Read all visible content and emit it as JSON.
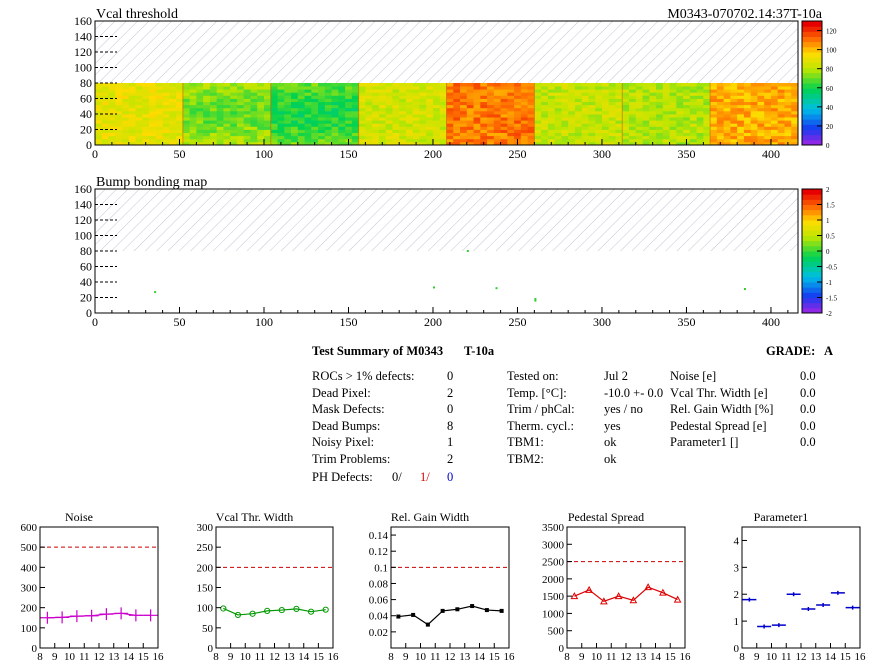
{
  "header": {
    "left_title": "Vcal threshold",
    "right_title": "M0343-070702.14:37T-10a"
  },
  "maps": [
    {
      "title": "Vcal threshold",
      "x_ticks": [
        0,
        50,
        100,
        150,
        200,
        250,
        300,
        350,
        400
      ],
      "y_ticks": [
        0,
        20,
        40,
        60,
        80,
        100,
        120,
        140,
        160
      ],
      "xlim": [
        0,
        416
      ],
      "ylim": [
        0,
        160
      ],
      "palette_ticks": [
        "0",
        "20",
        "40",
        "60",
        "80",
        "100",
        "120"
      ],
      "palette_range": [
        0,
        130
      ]
    },
    {
      "title": "Bump bonding map",
      "x_ticks": [
        0,
        50,
        100,
        150,
        200,
        250,
        300,
        350,
        400
      ],
      "y_ticks": [
        0,
        20,
        40,
        60,
        80,
        100,
        120,
        140,
        160
      ],
      "xlim": [
        0,
        416
      ],
      "ylim": [
        0,
        160
      ],
      "palette_ticks": [
        "-2",
        "-1.5",
        "-1",
        "-0.5",
        "0",
        "0.5",
        "1",
        "1.5",
        "2"
      ],
      "palette_range": [
        -2,
        2
      ]
    }
  ],
  "summary": {
    "title": "Test Summary of M0343",
    "temp_tag": "T-10a",
    "grade_label": "GRADE:",
    "grade": "A",
    "left": [
      {
        "label": "ROCs > 1% defects:",
        "value": "0"
      },
      {
        "label": "Dead Pixel:",
        "value": "2"
      },
      {
        "label": "Mask Defects:",
        "value": "0"
      },
      {
        "label": "Dead Bumps:",
        "value": "8"
      },
      {
        "label": "Noisy Pixel:",
        "value": "1"
      },
      {
        "label": "Trim Problems:",
        "value": "2"
      }
    ],
    "ph_label": "PH Defects:",
    "ph_values": [
      "0/",
      "1/",
      "0"
    ],
    "ph_colors": [
      "#000000",
      "#dd0000",
      "#0000cc"
    ],
    "middle": [
      {
        "label": "Tested on:",
        "value": "Jul 2"
      },
      {
        "label": "Temp. [°C]:",
        "value": "-10.0 +- 0.0"
      },
      {
        "label": "Trim / phCal:",
        "value": "yes / no"
      },
      {
        "label": "Therm. cycl.:",
        "value": "yes"
      },
      {
        "label": "TBM1:",
        "value": "ok"
      },
      {
        "label": "TBM2:",
        "value": "ok"
      }
    ],
    "right": [
      {
        "label": "Noise [e]",
        "value": "0.0"
      },
      {
        "label": "Vcal Thr. Width [e]",
        "value": "0.0"
      },
      {
        "label": "Rel. Gain Width [%]",
        "value": "0.0"
      },
      {
        "label": "Pedestal Spread [e]",
        "value": "0.0"
      },
      {
        "label": "Parameter1 []",
        "value": "0.0"
      }
    ]
  },
  "chart_data": [
    {
      "type": "line",
      "title": "Noise",
      "color": "#cc00cc",
      "marker": "cross",
      "x": [
        8.5,
        9.5,
        10.5,
        11.5,
        12.5,
        13.5,
        14.5,
        15.5
      ],
      "values": [
        150,
        152,
        158,
        160,
        168,
        172,
        162,
        162
      ],
      "xlim": [
        8,
        16
      ],
      "ylim": [
        0,
        600
      ],
      "y_ticks": [
        0,
        100,
        200,
        300,
        400,
        500,
        600
      ],
      "x_ticks": [
        8,
        9,
        10,
        11,
        12,
        13,
        14,
        15,
        16
      ],
      "limit": 500,
      "limit_color": "#cc0000"
    },
    {
      "type": "line",
      "title": "Vcal Thr. Width",
      "color": "#009900",
      "marker": "circle",
      "x": [
        8.5,
        9.5,
        10.5,
        11.5,
        12.5,
        13.5,
        14.5,
        15.5
      ],
      "values": [
        98,
        82,
        85,
        92,
        94,
        97,
        90,
        95
      ],
      "xlim": [
        8,
        16
      ],
      "ylim": [
        0,
        300
      ],
      "y_ticks": [
        0,
        50,
        100,
        150,
        200,
        250,
        300
      ],
      "x_ticks": [
        8,
        9,
        10,
        11,
        12,
        13,
        14,
        15,
        16
      ],
      "limit": 200,
      "limit_color": "#cc0000"
    },
    {
      "type": "line",
      "title": "Rel. Gain Width",
      "color": "#000000",
      "marker": "square",
      "x": [
        8.5,
        9.5,
        10.5,
        11.5,
        12.5,
        13.5,
        14.5,
        15.5
      ],
      "values": [
        0.039,
        0.041,
        0.029,
        0.046,
        0.048,
        0.052,
        0.047,
        0.046
      ],
      "xlim": [
        8,
        16
      ],
      "ylim": [
        0,
        0.15
      ],
      "y_ticks": [
        0.02,
        0.04,
        0.06,
        0.08,
        0.1,
        0.12,
        0.14
      ],
      "x_ticks": [
        8,
        9,
        10,
        11,
        12,
        13,
        14,
        15,
        16
      ],
      "limit": 0.1,
      "limit_color": "#cc0000"
    },
    {
      "type": "line",
      "title": "Pedestal Spread",
      "color": "#dd0000",
      "marker": "triangle",
      "x": [
        8.5,
        9.5,
        10.5,
        11.5,
        12.5,
        13.5,
        14.5,
        15.5
      ],
      "values": [
        1500,
        1680,
        1350,
        1500,
        1380,
        1760,
        1600,
        1400
      ],
      "xlim": [
        8,
        16
      ],
      "ylim": [
        0,
        3500
      ],
      "y_ticks": [
        0,
        500,
        1000,
        1500,
        2000,
        2500,
        3000,
        3500
      ],
      "x_ticks": [
        8,
        9,
        10,
        11,
        12,
        13,
        14,
        15,
        16
      ],
      "limit": 2500,
      "limit_color": "#cc0000"
    },
    {
      "type": "scatter",
      "title": "Parameter1",
      "color": "#0000cc",
      "marker": "hbar",
      "x": [
        8.5,
        9.5,
        10.5,
        11.5,
        12.5,
        13.5,
        14.5,
        15.5
      ],
      "values": [
        1.8,
        0.8,
        0.85,
        2.0,
        1.45,
        1.6,
        2.05,
        1.5
      ],
      "xlim": [
        8,
        16
      ],
      "ylim": [
        0,
        4.5
      ],
      "y_ticks": [
        0,
        1,
        2,
        3,
        4
      ],
      "x_ticks": [
        8,
        9,
        10,
        11,
        12,
        13,
        14,
        15,
        16
      ]
    }
  ]
}
